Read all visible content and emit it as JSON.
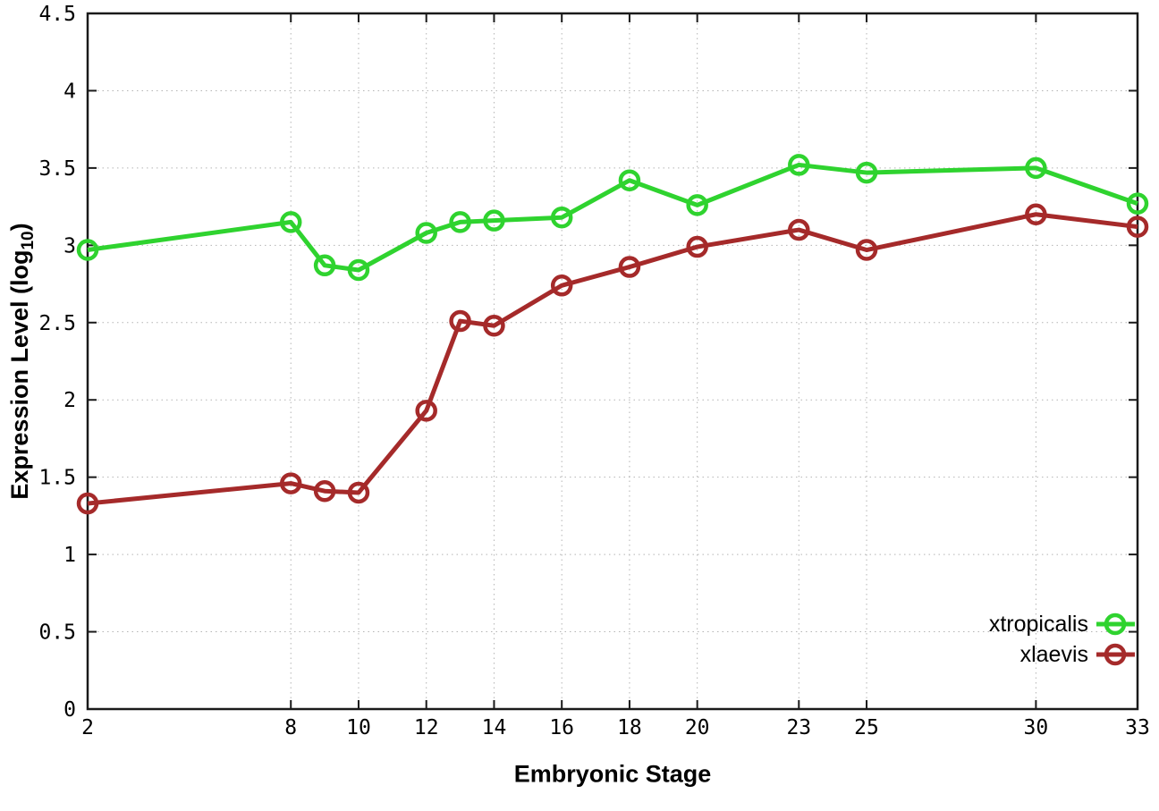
{
  "figure": {
    "background_color": "#ffffff",
    "border_color": "#1a1a1a",
    "grid_color": "#b4b4b4"
  },
  "chart_data": {
    "type": "line",
    "title": "",
    "xlabel": "Embryonic Stage",
    "ylabel": "Expression Level (log10)",
    "ylabel_prefix": "Expression Level (log",
    "ylabel_sub": "10",
    "ylabel_suffix": ")",
    "xlim": [
      2,
      33
    ],
    "ylim": [
      0,
      4.5
    ],
    "xticks": [
      2,
      8,
      10,
      12,
      14,
      16,
      18,
      20,
      23,
      25,
      30,
      33
    ],
    "yticks": [
      0,
      0.5,
      1,
      1.5,
      2,
      2.5,
      3,
      3.5,
      4,
      4.5
    ],
    "grid": true,
    "legend_position": "bottom-right",
    "x": [
      2,
      8,
      9,
      10,
      12,
      13,
      14,
      16,
      18,
      20,
      23,
      25,
      30,
      33
    ],
    "series": [
      {
        "name": "xtropicalis",
        "color": "#2fd32f",
        "marker": "open-circle",
        "values": [
          2.97,
          3.15,
          2.87,
          2.84,
          3.08,
          3.15,
          3.16,
          3.18,
          3.42,
          3.26,
          3.52,
          3.47,
          3.5,
          3.27
        ]
      },
      {
        "name": "xlaevis",
        "color": "#a52a2a",
        "marker": "open-circle",
        "values": [
          1.33,
          1.46,
          1.41,
          1.4,
          1.93,
          2.51,
          2.48,
          2.74,
          2.86,
          2.99,
          3.1,
          2.97,
          3.2,
          3.12
        ]
      }
    ]
  }
}
